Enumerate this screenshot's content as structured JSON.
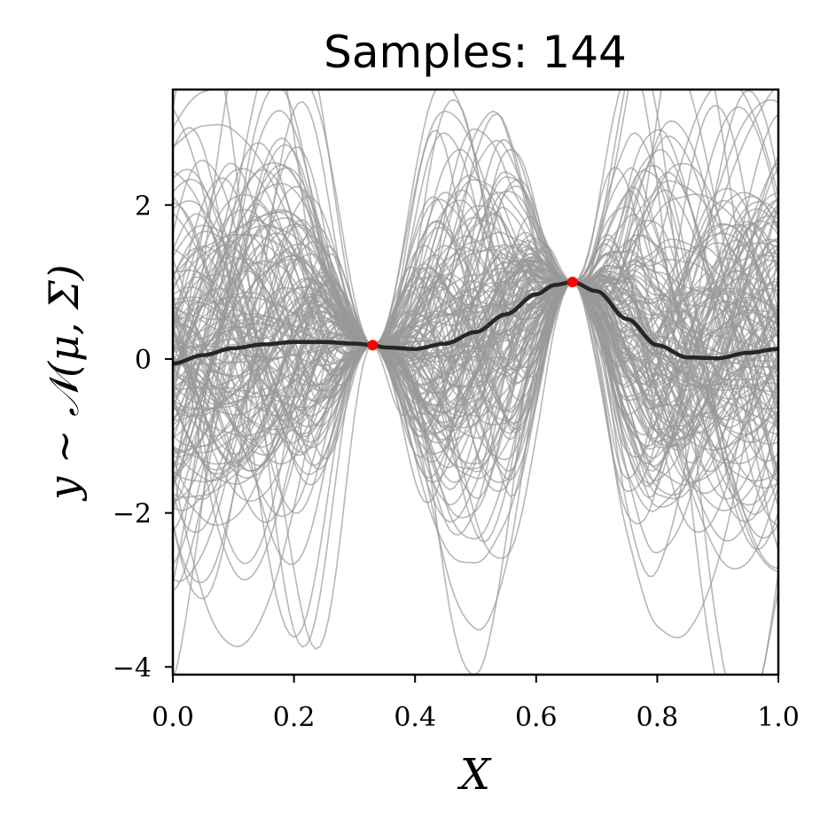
{
  "chart_data": {
    "type": "line",
    "title": "Samples:  144",
    "xlabel": "X",
    "ylabel": "y ∼ 𝒩(μ, Σ)",
    "xlim": [
      0.0,
      1.0
    ],
    "ylim": [
      -4.1,
      3.5
    ],
    "xticks": [
      0.0,
      0.2,
      0.4,
      0.6,
      0.8,
      1.0
    ],
    "xtick_labels": [
      "0.0",
      "0.2",
      "0.4",
      "0.6",
      "0.8",
      "1.0"
    ],
    "yticks": [
      -4,
      -2,
      0,
      2
    ],
    "ytick_labels": [
      "−4",
      "−2",
      "0",
      "2"
    ],
    "grid": false,
    "num_samples": 144,
    "colors": {
      "samples": "#999999",
      "mean": "#262626",
      "observations": "#ff0000"
    },
    "observations": {
      "x": [
        0.33,
        0.66
      ],
      "y": [
        0.18,
        1.0
      ]
    },
    "mean": {
      "x": [
        0.0,
        0.05,
        0.1,
        0.15,
        0.2,
        0.25,
        0.3,
        0.33,
        0.35,
        0.4,
        0.45,
        0.5,
        0.55,
        0.6,
        0.63,
        0.66,
        0.7,
        0.75,
        0.8,
        0.85,
        0.9,
        0.95,
        1.0
      ],
      "y": [
        -0.06,
        0.05,
        0.14,
        0.19,
        0.22,
        0.22,
        0.2,
        0.18,
        0.15,
        0.13,
        0.2,
        0.35,
        0.58,
        0.84,
        0.96,
        1.0,
        0.88,
        0.52,
        0.18,
        0.02,
        0.01,
        0.08,
        0.13
      ]
    }
  }
}
